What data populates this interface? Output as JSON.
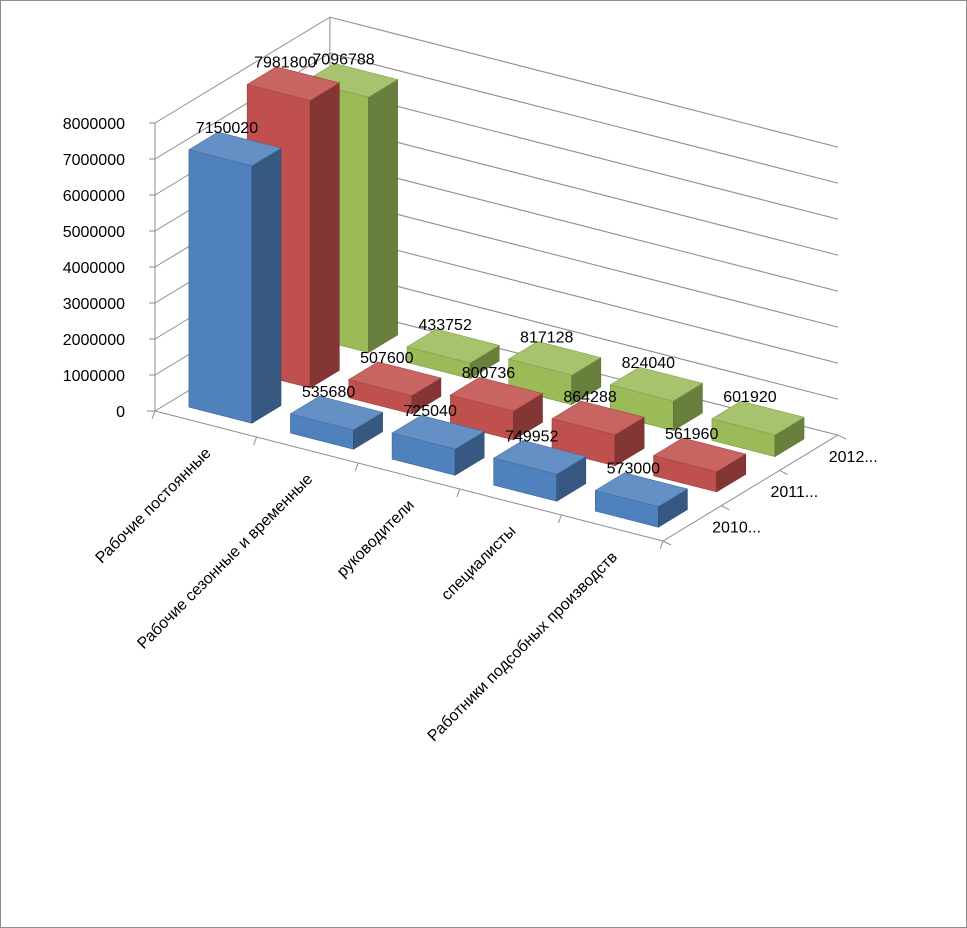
{
  "chart_data": {
    "type": "bar",
    "variant": "3d-column",
    "title": "",
    "categories": [
      "Рабочие постоянные",
      "Рабочие сезонные и временные",
      "руководители",
      "специалисты",
      "Работники подсобных производств"
    ],
    "series": [
      {
        "name": "2010...",
        "color": "#4F81BD",
        "values": [
          7150020,
          535680,
          725040,
          749952,
          573000
        ]
      },
      {
        "name": "2011...",
        "color": "#C0504D",
        "values": [
          7981800,
          507600,
          800736,
          864288,
          561960
        ]
      },
      {
        "name": "2012...",
        "color": "#9BBB59",
        "values": [
          7096788,
          433752,
          817128,
          824040,
          601920
        ]
      }
    ],
    "yticks": [
      "0",
      "1000000",
      "2000000",
      "3000000",
      "4000000",
      "5000000",
      "6000000",
      "7000000",
      "8000000"
    ],
    "ylim": [
      0,
      8000000
    ],
    "grid": true,
    "data_labels": true
  }
}
